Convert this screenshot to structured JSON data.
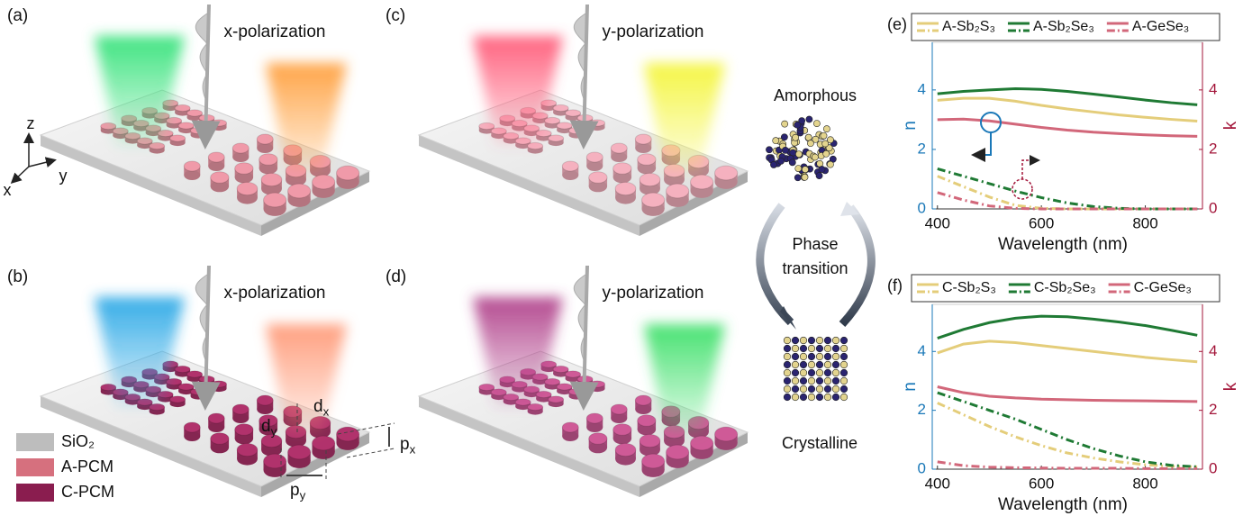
{
  "panels": [
    {
      "label": "(a)",
      "polarization": "x-polarization",
      "beams": [
        "#35e27a",
        "#ff9f3c"
      ],
      "pillar": "#f09aa9"
    },
    {
      "label": "(b)",
      "polarization": "x-polarization",
      "beams": [
        "#2aa8e6",
        "#ff9a78"
      ],
      "pillar": "#b1326c"
    },
    {
      "label": "(c)",
      "polarization": "y-polarization",
      "beams": [
        "#ff5a78",
        "#f4f53a"
      ],
      "pillar": "#f5b1bf"
    },
    {
      "label": "(d)",
      "polarization": "y-polarization",
      "beams": [
        "#b0408a",
        "#3ee06a"
      ],
      "pillar": "#cf5a97"
    }
  ],
  "coordinate_axes": {
    "z": "z",
    "x": "x",
    "y": "y"
  },
  "dimensions": {
    "dx": {
      "base": "d",
      "sub": "x"
    },
    "dy": {
      "base": "d",
      "sub": "y"
    },
    "px": {
      "base": "p",
      "sub": "x"
    },
    "py": {
      "base": "p",
      "sub": "y"
    }
  },
  "materials_legend": [
    {
      "label": "SiO₂",
      "color": "#bdbdbd"
    },
    {
      "label": "A-PCM",
      "color": "#d6707e"
    },
    {
      "label": "C-PCM",
      "color": "#8a1d4f"
    }
  ],
  "phase": {
    "top": "Amorphous",
    "middle": [
      "Phase",
      "transition"
    ],
    "bottom": "Crystalline"
  },
  "chart_data": [
    {
      "type": "line",
      "panel_label": "(e)",
      "xlabel": "Wavelength (nm)",
      "ylabel": "n",
      "y2label": "k",
      "x": [
        400,
        450,
        500,
        550,
        600,
        650,
        700,
        750,
        800,
        850,
        900
      ],
      "xlim": [
        390,
        910
      ],
      "xticks": [
        400,
        600,
        800
      ],
      "ylim": [
        0,
        5.6
      ],
      "yticks": [
        0,
        2,
        4
      ],
      "y2lim": [
        0,
        5.6
      ],
      "y2ticks": [
        0,
        2,
        4
      ],
      "ycolor": "#1a78b8",
      "y2color": "#a3163a",
      "series": [
        {
          "name": "A-Sb₂S₃",
          "color": "#e4cd7a",
          "values": [
            3.65,
            3.72,
            3.72,
            3.62,
            3.48,
            3.36,
            3.26,
            3.16,
            3.08,
            3.01,
            2.95
          ]
        },
        {
          "name": "A-Sb₂Se₃",
          "color": "#1f7a34",
          "values": [
            3.87,
            3.95,
            4.0,
            4.04,
            4.02,
            3.95,
            3.86,
            3.76,
            3.66,
            3.57,
            3.5
          ]
        },
        {
          "name": "A-GeSe₃",
          "color": "#d2677a",
          "values": [
            3.0,
            3.02,
            2.96,
            2.85,
            2.74,
            2.65,
            2.58,
            2.53,
            2.49,
            2.46,
            2.44
          ]
        },
        {
          "color": "#e4cd7a",
          "axis": "y2",
          "dashed": true,
          "values": [
            1.1,
            0.75,
            0.4,
            0.12,
            0.02,
            0,
            0,
            0,
            0,
            0,
            0
          ]
        },
        {
          "color": "#1f7a34",
          "axis": "y2",
          "dashed": true,
          "values": [
            1.35,
            1.1,
            0.85,
            0.6,
            0.38,
            0.2,
            0.08,
            0.02,
            0,
            0,
            0
          ]
        },
        {
          "color": "#d2677a",
          "axis": "y2",
          "dashed": true,
          "values": [
            0.55,
            0.3,
            0.1,
            0.02,
            0,
            0,
            0,
            0,
            0,
            0,
            0
          ]
        }
      ]
    },
    {
      "type": "line",
      "panel_label": "(f)",
      "xlabel": "Wavelength (nm)",
      "ylabel": "n",
      "y2label": "k",
      "x": [
        400,
        450,
        500,
        550,
        600,
        650,
        700,
        750,
        800,
        850,
        900
      ],
      "xlim": [
        390,
        910
      ],
      "xticks": [
        400,
        600,
        800
      ],
      "ylim": [
        0,
        5.6
      ],
      "yticks": [
        0,
        2,
        4
      ],
      "y2lim": [
        0,
        5.6
      ],
      "y2ticks": [
        0,
        2,
        4
      ],
      "ycolor": "#1a78b8",
      "y2color": "#a3163a",
      "series": [
        {
          "name": "C-Sb₂S₃",
          "color": "#e4cd7a",
          "values": [
            3.95,
            4.25,
            4.35,
            4.3,
            4.2,
            4.1,
            4.0,
            3.9,
            3.8,
            3.72,
            3.65
          ]
        },
        {
          "name": "C-Sb₂Se₃",
          "color": "#1f7a34",
          "values": [
            4.45,
            4.75,
            4.98,
            5.13,
            5.2,
            5.18,
            5.1,
            5.0,
            4.88,
            4.72,
            4.55
          ]
        },
        {
          "name": "C-GeSe₃",
          "color": "#d2677a",
          "values": [
            2.8,
            2.6,
            2.48,
            2.42,
            2.38,
            2.36,
            2.34,
            2.33,
            2.32,
            2.31,
            2.3
          ]
        },
        {
          "color": "#e4cd7a",
          "axis": "y2",
          "dashed": true,
          "values": [
            2.25,
            1.85,
            1.45,
            1.1,
            0.8,
            0.55,
            0.38,
            0.25,
            0.15,
            0.1,
            0.08
          ]
        },
        {
          "color": "#1f7a34",
          "axis": "y2",
          "dashed": true,
          "values": [
            2.6,
            2.3,
            2.0,
            1.7,
            1.35,
            1.0,
            0.7,
            0.45,
            0.25,
            0.13,
            0.08
          ]
        },
        {
          "color": "#d2677a",
          "axis": "y2",
          "dashed": true,
          "values": [
            0.25,
            0.12,
            0.07,
            0.05,
            0.04,
            0.03,
            0.03,
            0.03,
            0.02,
            0.02,
            0.02
          ]
        }
      ]
    }
  ]
}
